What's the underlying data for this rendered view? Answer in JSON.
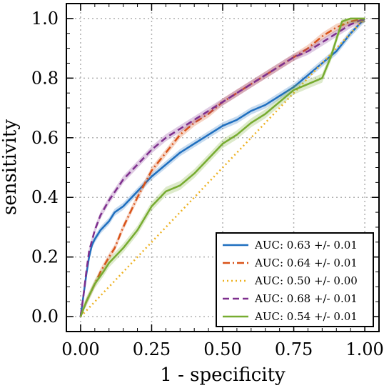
{
  "chart_data": {
    "type": "line",
    "xlabel": "1 - specificity",
    "ylabel": "sensitivity",
    "xlim": [
      -0.05,
      1.05
    ],
    "ylim": [
      -0.05,
      1.05
    ],
    "xticks": [
      "0.00",
      "0.25",
      "0.50",
      "0.75",
      "1.00"
    ],
    "yticks": [
      "0.0",
      "0.2",
      "0.4",
      "0.6",
      "0.8",
      "1.0"
    ],
    "grid": true,
    "legend_position": "bottom-right",
    "series": [
      {
        "name": "AUC: 0.63 +/- 0.01",
        "color": "#1f6fbf",
        "dash": "solid",
        "band": 0.012,
        "x": [
          0,
          0.01,
          0.02,
          0.03,
          0.04,
          0.05,
          0.07,
          0.1,
          0.12,
          0.15,
          0.2,
          0.25,
          0.3,
          0.35,
          0.4,
          0.45,
          0.5,
          0.55,
          0.6,
          0.65,
          0.7,
          0.75,
          0.8,
          0.85,
          0.9,
          0.95,
          1.0
        ],
        "y": [
          0,
          0.07,
          0.14,
          0.2,
          0.24,
          0.26,
          0.29,
          0.32,
          0.35,
          0.37,
          0.42,
          0.47,
          0.51,
          0.55,
          0.58,
          0.61,
          0.64,
          0.66,
          0.69,
          0.71,
          0.74,
          0.77,
          0.81,
          0.85,
          0.89,
          0.95,
          1.0
        ]
      },
      {
        "name": "AUC: 0.64 +/- 0.01",
        "color": "#d95319",
        "dash": "dashdot",
        "band": 0.012,
        "x": [
          0,
          0.02,
          0.05,
          0.07,
          0.1,
          0.12,
          0.15,
          0.2,
          0.25,
          0.3,
          0.35,
          0.4,
          0.45,
          0.5,
          0.55,
          0.6,
          0.65,
          0.7,
          0.75,
          0.8,
          0.85,
          0.9,
          0.95,
          1.0
        ],
        "y": [
          0,
          0.05,
          0.11,
          0.15,
          0.2,
          0.23,
          0.3,
          0.4,
          0.49,
          0.55,
          0.61,
          0.65,
          0.68,
          0.72,
          0.75,
          0.78,
          0.81,
          0.84,
          0.87,
          0.9,
          0.94,
          0.97,
          0.99,
          1.0
        ]
      },
      {
        "name": "AUC: 0.50 +/- 0.00",
        "color": "#edb120",
        "dash": "dotted",
        "band": 0,
        "x": [
          0,
          1
        ],
        "y": [
          0,
          1
        ]
      },
      {
        "name": "AUC: 0.68 +/- 0.01",
        "color": "#7e2f8e",
        "dash": "dashed",
        "band": 0.012,
        "x": [
          0,
          0.01,
          0.02,
          0.03,
          0.05,
          0.07,
          0.1,
          0.15,
          0.2,
          0.25,
          0.3,
          0.35,
          0.4,
          0.45,
          0.5,
          0.55,
          0.6,
          0.65,
          0.7,
          0.75,
          0.8,
          0.85,
          0.9,
          0.95,
          1.0
        ],
        "y": [
          0,
          0.07,
          0.15,
          0.22,
          0.29,
          0.34,
          0.39,
          0.46,
          0.51,
          0.56,
          0.6,
          0.63,
          0.66,
          0.69,
          0.72,
          0.75,
          0.78,
          0.81,
          0.84,
          0.87,
          0.89,
          0.92,
          0.95,
          0.98,
          1.0
        ]
      },
      {
        "name": "AUC: 0.54 +/- 0.01",
        "color": "#77ac30",
        "dash": "solid",
        "band": 0.015,
        "x": [
          0,
          0.02,
          0.05,
          0.08,
          0.1,
          0.15,
          0.2,
          0.25,
          0.3,
          0.35,
          0.4,
          0.45,
          0.5,
          0.55,
          0.6,
          0.65,
          0.7,
          0.75,
          0.8,
          0.85,
          0.88,
          0.9,
          0.92,
          0.95,
          1.0
        ],
        "y": [
          0,
          0.05,
          0.11,
          0.15,
          0.18,
          0.23,
          0.29,
          0.37,
          0.42,
          0.44,
          0.48,
          0.53,
          0.58,
          0.61,
          0.65,
          0.68,
          0.72,
          0.76,
          0.78,
          0.8,
          0.87,
          0.93,
          0.99,
          1.0,
          1.0
        ]
      }
    ]
  }
}
